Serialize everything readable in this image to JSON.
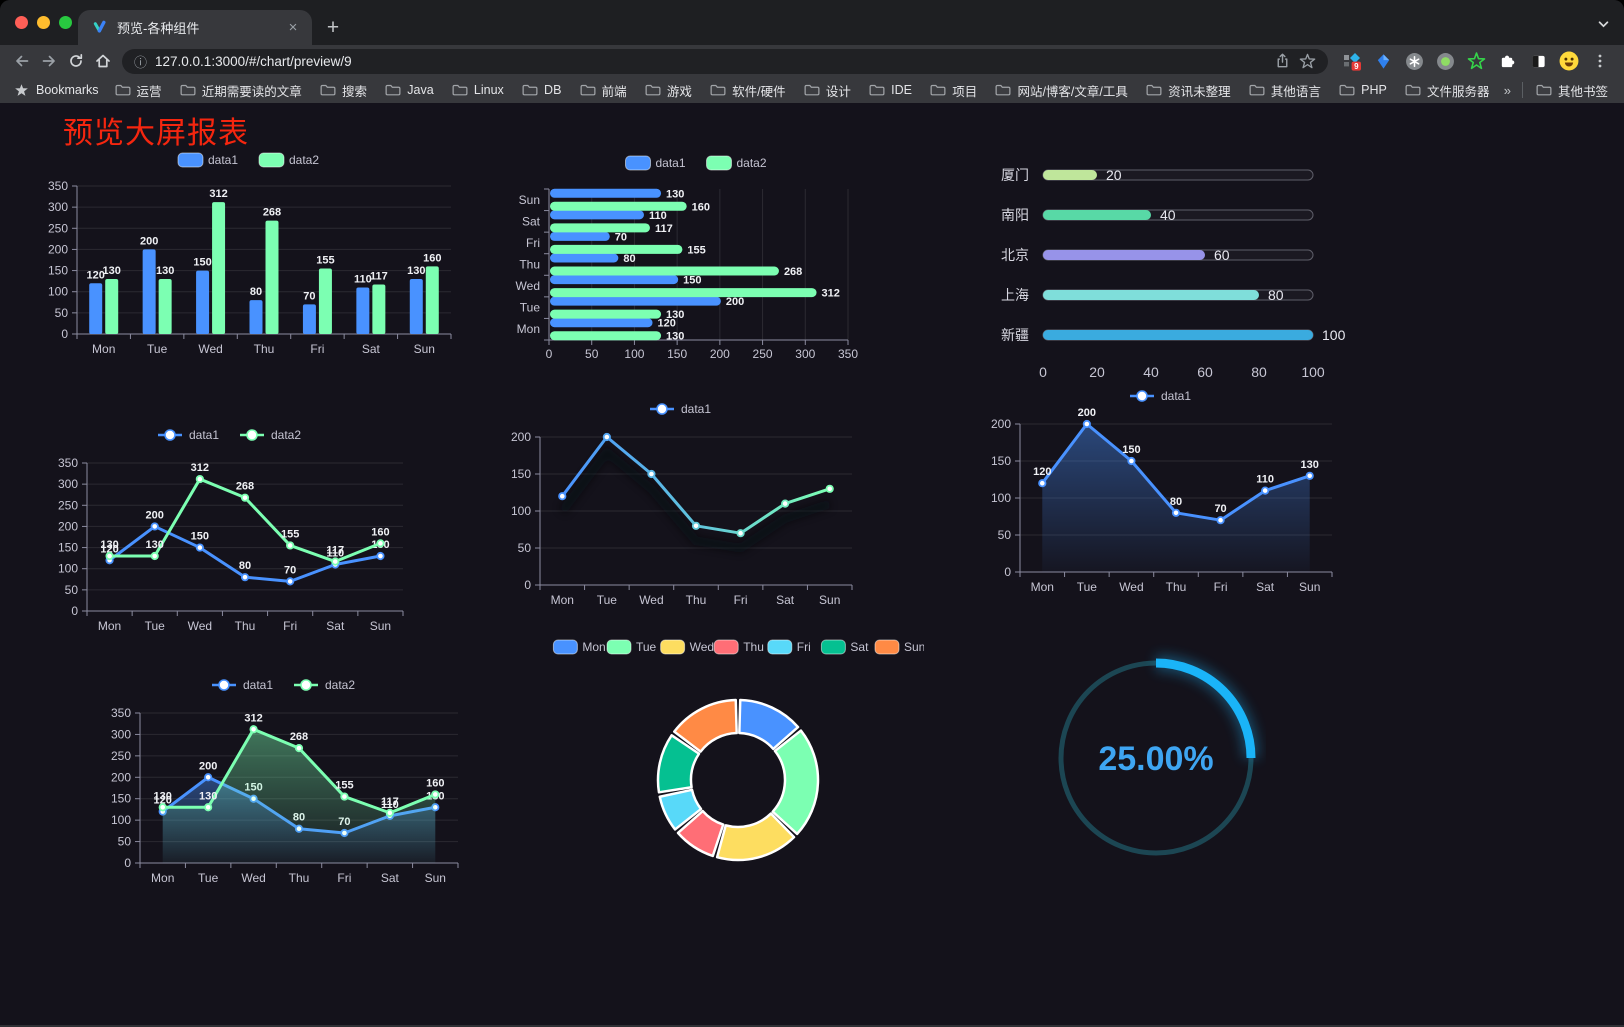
{
  "browser": {
    "tab": {
      "title": "预览-各种组件"
    },
    "url": "127.0.0.1:3000/#/chart/preview/9",
    "extensions_badge": "9",
    "bookmarks_bar": {
      "label": "Bookmarks",
      "folders": [
        "运营",
        "近期需要读的文章",
        "搜索",
        "Java",
        "Linux",
        "DB",
        "前端",
        "游戏",
        "软件/硬件",
        "设计",
        "IDE",
        "项目",
        "网站/博客/文章/工具",
        "资讯未整理",
        "其他语言",
        "PHP",
        "文件服务器"
      ],
      "overflow": "»",
      "other": "其他书签"
    }
  },
  "page": {
    "title": "预览大屏报表",
    "title_color": "#f5260f",
    "background": "#14121b"
  },
  "chart_data": [
    {
      "id": "grouped-bar",
      "type": "bar",
      "categories": [
        "Mon",
        "Tue",
        "Wed",
        "Thu",
        "Fri",
        "Sat",
        "Sun"
      ],
      "series": [
        {
          "name": "data1",
          "color": "#4992ff",
          "values": [
            120,
            200,
            150,
            80,
            70,
            110,
            130
          ]
        },
        {
          "name": "data2",
          "color": "#7cffb2",
          "values": [
            130,
            130,
            312,
            268,
            155,
            117,
            160
          ]
        }
      ],
      "ylim": [
        0,
        350
      ],
      "ytick": 50,
      "labels": true,
      "legend_position": "top",
      "grid": true
    },
    {
      "id": "horizontal-bar",
      "type": "hbar",
      "categories": [
        "Mon",
        "Tue",
        "Wed",
        "Thu",
        "Fri",
        "Sat",
        "Sun"
      ],
      "series": [
        {
          "name": "data1",
          "color": "#4992ff",
          "values": [
            120,
            200,
            150,
            80,
            70,
            110,
            130
          ]
        },
        {
          "name": "data2",
          "color": "#7cffb2",
          "values": [
            130,
            130,
            312,
            268,
            155,
            117,
            160
          ]
        }
      ],
      "xlim": [
        0,
        350
      ],
      "xtick": 50,
      "labels": true,
      "legend_position": "top",
      "grid": true
    },
    {
      "id": "progress-bars",
      "type": "progress",
      "categories": [
        "厦门",
        "南阳",
        "北京",
        "上海",
        "新疆"
      ],
      "values": [
        20,
        40,
        60,
        80,
        100
      ],
      "colors": [
        "#bfe69b",
        "#58d9a6",
        "#9793e9",
        "#7fdeda",
        "#3aabdf"
      ],
      "xlim": [
        0,
        100
      ],
      "xtick": 20
    },
    {
      "id": "two-line",
      "type": "line",
      "categories": [
        "Mon",
        "Tue",
        "Wed",
        "Thu",
        "Fri",
        "Sat",
        "Sun"
      ],
      "series": [
        {
          "name": "data1",
          "color": "#4992ff",
          "values": [
            120,
            200,
            150,
            80,
            70,
            110,
            130
          ]
        },
        {
          "name": "data2",
          "color": "#7cffb2",
          "values": [
            130,
            130,
            312,
            268,
            155,
            117,
            160
          ]
        }
      ],
      "ylim": [
        0,
        350
      ],
      "ytick": 50,
      "labels": true,
      "legend_position": "top",
      "grid": true
    },
    {
      "id": "gradient-line",
      "type": "line",
      "categories": [
        "Mon",
        "Tue",
        "Wed",
        "Thu",
        "Fri",
        "Sat",
        "Sun"
      ],
      "series": [
        {
          "name": "data1",
          "colors": [
            "#4992ff",
            "#7cffb2"
          ],
          "values": [
            120,
            200,
            150,
            80,
            70,
            110,
            130
          ]
        }
      ],
      "ylim": [
        0,
        200
      ],
      "ytick": 50,
      "labels": false,
      "shadow": true,
      "legend_position": "top",
      "grid": true
    },
    {
      "id": "area-line",
      "type": "line",
      "area": true,
      "categories": [
        "Mon",
        "Tue",
        "Wed",
        "Thu",
        "Fri",
        "Sat",
        "Sun"
      ],
      "series": [
        {
          "name": "data1",
          "color": "#4992ff",
          "values": [
            120,
            200,
            150,
            80,
            70,
            110,
            130
          ]
        }
      ],
      "ylim": [
        0,
        200
      ],
      "ytick": 50,
      "labels": true,
      "legend_position": "top",
      "grid": true
    },
    {
      "id": "double-area-line",
      "type": "line",
      "area": true,
      "categories": [
        "Mon",
        "Tue",
        "Wed",
        "Thu",
        "Fri",
        "Sat",
        "Sun"
      ],
      "series": [
        {
          "name": "data1",
          "color": "#4992ff",
          "values": [
            120,
            200,
            150,
            80,
            70,
            110,
            130
          ]
        },
        {
          "name": "data2",
          "color": "#7cffb2",
          "values": [
            130,
            130,
            312,
            268,
            155,
            117,
            160
          ]
        }
      ],
      "ylim": [
        0,
        350
      ],
      "ytick": 50,
      "labels": true,
      "legend_position": "top",
      "grid": true
    },
    {
      "id": "donut",
      "type": "pie",
      "categories": [
        "Mon",
        "Tue",
        "Wed",
        "Thu",
        "Fri",
        "Sat",
        "Sun"
      ],
      "values": [
        120,
        200,
        150,
        80,
        70,
        110,
        130
      ],
      "colors": [
        "#4992ff",
        "#7cffb2",
        "#fddd60",
        "#ff6e76",
        "#58d9f9",
        "#05c091",
        "#ff8a45"
      ],
      "legend_position": "top"
    },
    {
      "id": "gauge",
      "type": "gauge",
      "value": 25,
      "label": "25.00%",
      "color": "#1ab4f8",
      "text_color": "#3ea5f2",
      "track_color": "#1c4653"
    }
  ]
}
